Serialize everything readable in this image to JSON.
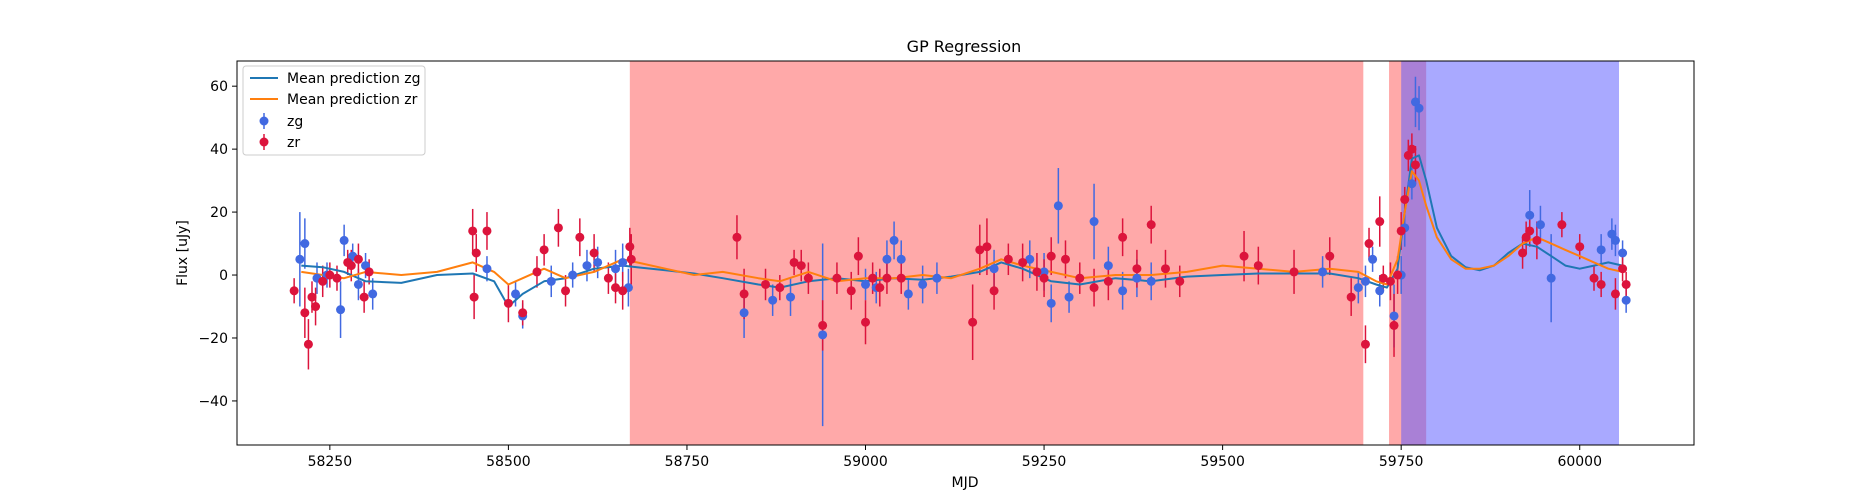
{
  "chart_data": {
    "type": "scatter",
    "title": "GP Regression",
    "xlabel": "MJD",
    "ylabel": "Flux [uJy]",
    "xlim": [
      58120,
      60160
    ],
    "ylim": [
      -54,
      68
    ],
    "xticks": [
      58250,
      58500,
      58750,
      59000,
      59250,
      59500,
      59750,
      60000
    ],
    "yticks": [
      -40,
      -20,
      0,
      20,
      40,
      60
    ],
    "legend_position": "top-left",
    "shaded_regions": [
      {
        "x0": 58670,
        "x1": 59697,
        "color": "#ff5a5a",
        "opacity": 0.52
      },
      {
        "x0": 59733,
        "x1": 59785,
        "color": "#ff5a5a",
        "opacity": 0.52
      },
      {
        "x0": 59750,
        "x1": 60055,
        "color": "#5a5aff",
        "opacity": 0.52
      }
    ],
    "series": [
      {
        "name": "Mean prediction zg",
        "kind": "line",
        "color": "#1f77b4",
        "x": [
          58210,
          58240,
          58270,
          58300,
          58350,
          58400,
          58450,
          58480,
          58500,
          58520,
          58550,
          58580,
          58620,
          58660,
          58680,
          58720,
          58760,
          58800,
          58850,
          58880,
          58920,
          58960,
          59000,
          59040,
          59080,
          59120,
          59160,
          59190,
          59220,
          59260,
          59300,
          59350,
          59400,
          59450,
          59500,
          59550,
          59600,
          59650,
          59690,
          59715,
          59730,
          59745,
          59755,
          59765,
          59775,
          59785,
          59800,
          59820,
          59840,
          59860,
          59880,
          59900,
          59920,
          59940,
          59960,
          59980,
          60000,
          60020,
          60040,
          60060
        ],
        "y": [
          3,
          2.5,
          1,
          -2,
          -2.5,
          0,
          0.5,
          -2,
          -10,
          -6,
          -2,
          -1,
          2,
          3,
          2.5,
          1.5,
          0.5,
          -1,
          -3,
          -4,
          -2,
          -1,
          -2,
          -1,
          -1.5,
          -0.5,
          1,
          4,
          2,
          -2,
          -3,
          -1,
          -2,
          -0.5,
          0,
          0.5,
          0.5,
          0.5,
          -1,
          -3,
          -4,
          2,
          20,
          37,
          38,
          30,
          15,
          6,
          2.5,
          1.5,
          3,
          7,
          10,
          9,
          6,
          3,
          2,
          3,
          4,
          3
        ]
      },
      {
        "name": "Mean prediction zr",
        "kind": "line",
        "color": "#ff7f0e",
        "x": [
          58210,
          58240,
          58270,
          58300,
          58350,
          58400,
          58450,
          58480,
          58500,
          58520,
          58550,
          58580,
          58620,
          58660,
          58680,
          58720,
          58760,
          58800,
          58850,
          58880,
          58920,
          58960,
          59000,
          59040,
          59080,
          59120,
          59160,
          59190,
          59220,
          59260,
          59300,
          59350,
          59400,
          59450,
          59500,
          59550,
          59600,
          59650,
          59690,
          59715,
          59730,
          59745,
          59755,
          59765,
          59775,
          59785,
          59800,
          59820,
          59840,
          59860,
          59880,
          59900,
          59920,
          59940,
          59960,
          59980,
          60000,
          60020,
          60040,
          60060
        ],
        "y": [
          1,
          0,
          -1,
          1,
          0,
          1,
          4,
          1,
          -3,
          -1,
          2,
          -1,
          1,
          5,
          4,
          2,
          0,
          1,
          -1,
          -2,
          1,
          -2,
          -1,
          -1,
          0,
          -1,
          2,
          5,
          3,
          1,
          -1,
          0,
          0,
          1,
          3,
          2,
          1,
          2,
          1,
          -2,
          -3,
          5,
          20,
          33,
          30,
          22,
          12,
          5,
          2,
          2,
          3,
          6,
          10,
          12,
          10,
          8,
          6,
          4,
          2,
          1
        ]
      },
      {
        "name": "zg",
        "kind": "errorbar",
        "color": "#4169e1",
        "points": [
          [
            58208,
            5,
            15
          ],
          [
            58215,
            10,
            8
          ],
          [
            58232,
            -1,
            5
          ],
          [
            58246,
            0,
            4
          ],
          [
            58265,
            -11,
            9
          ],
          [
            58270,
            11,
            5
          ],
          [
            58282,
            6,
            4
          ],
          [
            58290,
            -3,
            5
          ],
          [
            58300,
            3,
            4
          ],
          [
            58310,
            -6,
            5
          ],
          [
            58470,
            2,
            4
          ],
          [
            58510,
            -6,
            4
          ],
          [
            58520,
            -13,
            4
          ],
          [
            58560,
            -2,
            5
          ],
          [
            58590,
            0,
            4
          ],
          [
            58610,
            3,
            5
          ],
          [
            58625,
            4,
            5
          ],
          [
            58650,
            2,
            6
          ],
          [
            58660,
            4,
            6
          ],
          [
            58668,
            -4,
            6
          ],
          [
            58830,
            -12,
            8
          ],
          [
            58870,
            -8,
            5
          ],
          [
            58895,
            -7,
            6
          ],
          [
            58940,
            -19,
            29
          ],
          [
            59000,
            -3,
            5
          ],
          [
            59015,
            -4,
            5
          ],
          [
            59030,
            5,
            6
          ],
          [
            59040,
            11,
            6
          ],
          [
            59050,
            5,
            6
          ],
          [
            59060,
            -6,
            5
          ],
          [
            59080,
            -3,
            6
          ],
          [
            59100,
            -1,
            5
          ],
          [
            59180,
            2,
            6
          ],
          [
            59230,
            5,
            6
          ],
          [
            59250,
            1,
            6
          ],
          [
            59260,
            -9,
            6
          ],
          [
            59270,
            22,
            12
          ],
          [
            59285,
            -7,
            5
          ],
          [
            59320,
            17,
            12
          ],
          [
            59340,
            3,
            6
          ],
          [
            59360,
            -5,
            6
          ],
          [
            59380,
            -1,
            6
          ],
          [
            59400,
            -2,
            6
          ],
          [
            59640,
            1,
            5
          ],
          [
            59690,
            -4,
            5
          ],
          [
            59700,
            -2,
            5
          ],
          [
            59710,
            5,
            4
          ],
          [
            59720,
            -5,
            5
          ],
          [
            59740,
            -13,
            10
          ],
          [
            59750,
            0,
            6
          ],
          [
            59755,
            15,
            6
          ],
          [
            59765,
            29,
            5
          ],
          [
            59770,
            55,
            8
          ],
          [
            59775,
            53,
            7
          ],
          [
            59930,
            19,
            8
          ],
          [
            59945,
            16,
            6
          ],
          [
            59960,
            -1,
            14
          ],
          [
            60030,
            8,
            5
          ],
          [
            60045,
            13,
            5
          ],
          [
            60050,
            11,
            5
          ],
          [
            60060,
            7,
            4
          ],
          [
            60065,
            -8,
            4
          ]
        ]
      },
      {
        "name": "zr",
        "kind": "errorbar",
        "color": "#dc143c",
        "points": [
          [
            58200,
            -5,
            4
          ],
          [
            58215,
            -12,
            8
          ],
          [
            58220,
            -22,
            8
          ],
          [
            58225,
            -7,
            5
          ],
          [
            58230,
            -10,
            6
          ],
          [
            58240,
            -2,
            5
          ],
          [
            58250,
            0,
            4
          ],
          [
            58260,
            -1,
            4
          ],
          [
            58275,
            4,
            4
          ],
          [
            58280,
            3,
            5
          ],
          [
            58290,
            5,
            5
          ],
          [
            58298,
            -7,
            5
          ],
          [
            58305,
            1,
            4
          ],
          [
            58450,
            14,
            7
          ],
          [
            58452,
            -7,
            7
          ],
          [
            58455,
            7,
            6
          ],
          [
            58470,
            14,
            6
          ],
          [
            58500,
            -9,
            6
          ],
          [
            58520,
            -12,
            4
          ],
          [
            58540,
            1,
            5
          ],
          [
            58550,
            8,
            5
          ],
          [
            58570,
            15,
            6
          ],
          [
            58580,
            -5,
            5
          ],
          [
            58600,
            12,
            6
          ],
          [
            58620,
            7,
            6
          ],
          [
            58640,
            -1,
            5
          ],
          [
            58650,
            -4,
            5
          ],
          [
            58660,
            -5,
            6
          ],
          [
            58670,
            9,
            6
          ],
          [
            58672,
            5,
            8
          ],
          [
            58820,
            12,
            7
          ],
          [
            58830,
            -6,
            8
          ],
          [
            58860,
            -3,
            5
          ],
          [
            58880,
            -4,
            4
          ],
          [
            58900,
            4,
            4
          ],
          [
            58910,
            3,
            5
          ],
          [
            58920,
            -1,
            5
          ],
          [
            58940,
            -16,
            8
          ],
          [
            58960,
            -1,
            5
          ],
          [
            58980,
            -5,
            6
          ],
          [
            58990,
            6,
            6
          ],
          [
            59000,
            -15,
            7
          ],
          [
            59010,
            -1,
            5
          ],
          [
            59020,
            -4,
            6
          ],
          [
            59030,
            -1,
            5
          ],
          [
            59050,
            -1,
            5
          ],
          [
            59150,
            -15,
            12
          ],
          [
            59160,
            8,
            8
          ],
          [
            59170,
            9,
            9
          ],
          [
            59180,
            -5,
            6
          ],
          [
            59200,
            5,
            5
          ],
          [
            59220,
            4,
            6
          ],
          [
            59240,
            1,
            6
          ],
          [
            59250,
            -1,
            6
          ],
          [
            59260,
            6,
            6
          ],
          [
            59280,
            5,
            6
          ],
          [
            59300,
            -1,
            5
          ],
          [
            59320,
            -4,
            6
          ],
          [
            59340,
            -2,
            6
          ],
          [
            59360,
            12,
            6
          ],
          [
            59380,
            2,
            6
          ],
          [
            59400,
            16,
            6
          ],
          [
            59420,
            2,
            6
          ],
          [
            59440,
            -2,
            5
          ],
          [
            59530,
            6,
            8
          ],
          [
            59550,
            3,
            6
          ],
          [
            59600,
            1,
            7
          ],
          [
            59650,
            6,
            6
          ],
          [
            59680,
            -7,
            6
          ],
          [
            59700,
            -22,
            6
          ],
          [
            59705,
            10,
            5
          ],
          [
            59720,
            17,
            8
          ],
          [
            59725,
            -1,
            4
          ],
          [
            59735,
            -2,
            6
          ],
          [
            59740,
            -16,
            10
          ],
          [
            59745,
            0,
            6
          ],
          [
            59750,
            14,
            6
          ],
          [
            59755,
            24,
            4
          ],
          [
            59760,
            38,
            5
          ],
          [
            59765,
            40,
            5
          ],
          [
            59770,
            35,
            6
          ],
          [
            59920,
            7,
            5
          ],
          [
            59925,
            12,
            5
          ],
          [
            59930,
            14,
            5
          ],
          [
            59940,
            11,
            6
          ],
          [
            59975,
            16,
            4
          ],
          [
            60000,
            9,
            4
          ],
          [
            60020,
            -1,
            4
          ],
          [
            60030,
            -3,
            4
          ],
          [
            60050,
            -6,
            5
          ],
          [
            60060,
            2,
            4
          ],
          [
            60065,
            -3,
            4
          ]
        ]
      }
    ]
  }
}
